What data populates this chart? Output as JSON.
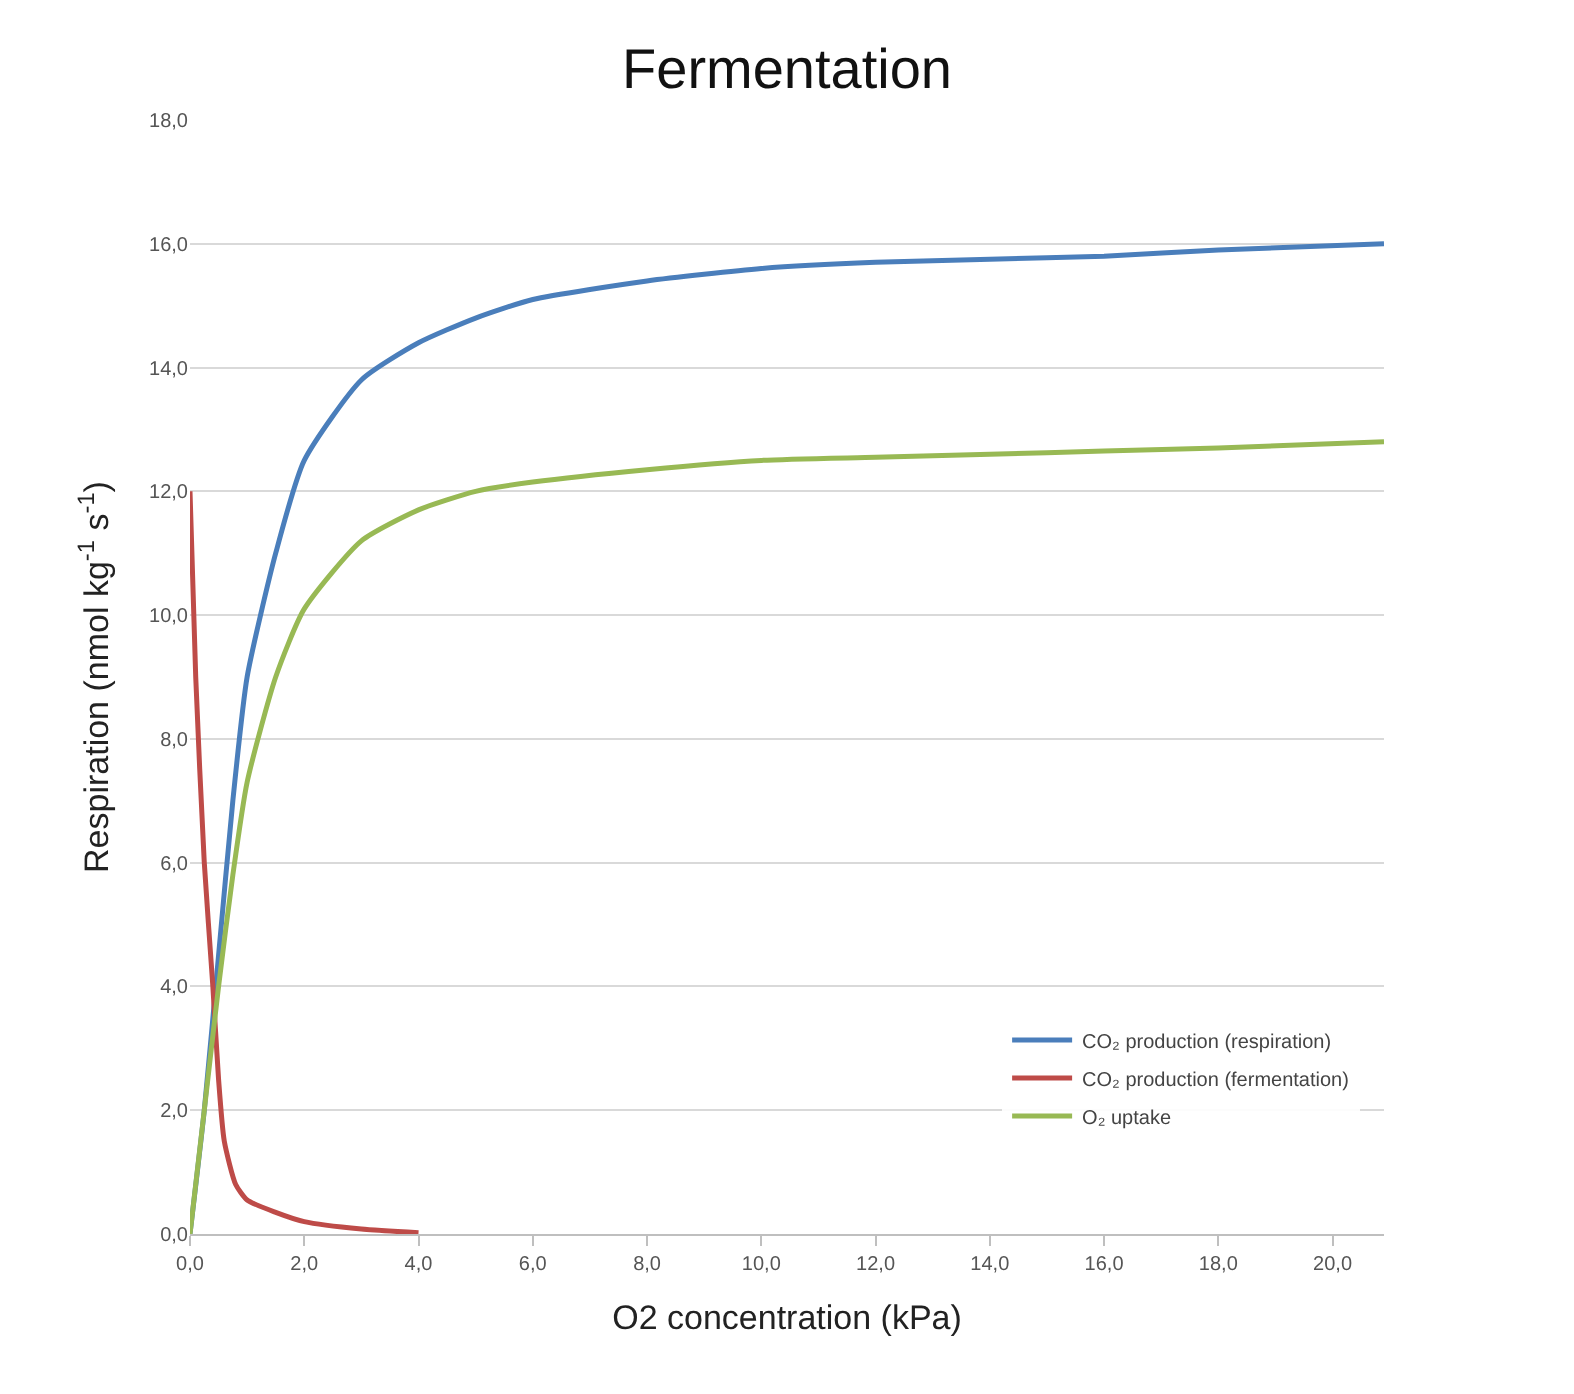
{
  "chart_data": {
    "type": "line",
    "title": "Fermentation",
    "xlabel": "O2 concentration (kPa)",
    "ylabel": "Respiration (nmol kg$^{-1}$ s$^{-1}$)",
    "xlim": [
      0,
      20.9
    ],
    "xticks": [
      {
        "value": 0,
        "label": "0,0"
      },
      {
        "value": 2,
        "label": "2,0"
      },
      {
        "value": 4,
        "label": "4,0"
      },
      {
        "value": 6,
        "label": "6,0"
      },
      {
        "value": 8,
        "label": "8,0"
      },
      {
        "value": 10,
        "label": "10,0"
      },
      {
        "value": 12,
        "label": "12,0"
      },
      {
        "value": 14,
        "label": "14,0"
      },
      {
        "value": 16,
        "label": "16,0"
      },
      {
        "value": 18,
        "label": "18,0"
      },
      {
        "value": 20,
        "label": "20,0"
      }
    ],
    "ylim": [
      0,
      18
    ],
    "yticks": [
      {
        "value": 0,
        "label": "0,0"
      },
      {
        "value": 2,
        "label": "2,0"
      },
      {
        "value": 4,
        "label": "4,0"
      },
      {
        "value": 6,
        "label": "6,0"
      },
      {
        "value": 8,
        "label": "8,0"
      },
      {
        "value": 10,
        "label": "10,0"
      },
      {
        "value": 12,
        "label": "12,0"
      },
      {
        "value": 14,
        "label": "14,0"
      },
      {
        "value": 16,
        "label": "16,0"
      },
      {
        "value": 18,
        "label": "18,0"
      }
    ],
    "grid": "y",
    "legend": "bottom right",
    "marker": "none",
    "line_style": "solid",
    "series": [
      {
        "name": "CO₂ production (respiration)",
        "color": "#4a7ebb",
        "x": [
          0,
          0.25,
          0.5,
          0.75,
          1,
          1.5,
          2,
          3,
          4,
          5,
          6,
          8,
          10,
          12,
          14,
          16,
          18,
          20.9
        ],
        "values": [
          0,
          2,
          4.5,
          7,
          9,
          11,
          12.5,
          13.8,
          14.4,
          14.8,
          15.1,
          15.4,
          15.6,
          15.7,
          15.75,
          15.8,
          15.9,
          16.0
        ]
      },
      {
        "name": "CO₂ production (fermentation)",
        "color": "#be4b48",
        "x": [
          0,
          0.1,
          0.25,
          0.4,
          0.5,
          0.6,
          0.8,
          1,
          1.5,
          2,
          3,
          4
        ],
        "values": [
          12,
          9,
          6,
          4,
          2.5,
          1.5,
          0.8,
          0.55,
          0.35,
          0.2,
          0.08,
          0.02
        ]
      },
      {
        "name": "O₂ uptake",
        "color": "#98b954",
        "x": [
          0,
          0.25,
          0.5,
          0.75,
          1,
          1.5,
          2,
          3,
          4,
          5,
          6,
          8,
          10,
          12,
          14,
          16,
          18,
          20.9
        ],
        "values": [
          0,
          2,
          4,
          5.8,
          7.3,
          9,
          10.1,
          11.2,
          11.7,
          12.0,
          12.15,
          12.35,
          12.5,
          12.55,
          12.6,
          12.65,
          12.7,
          12.8
        ]
      }
    ]
  }
}
